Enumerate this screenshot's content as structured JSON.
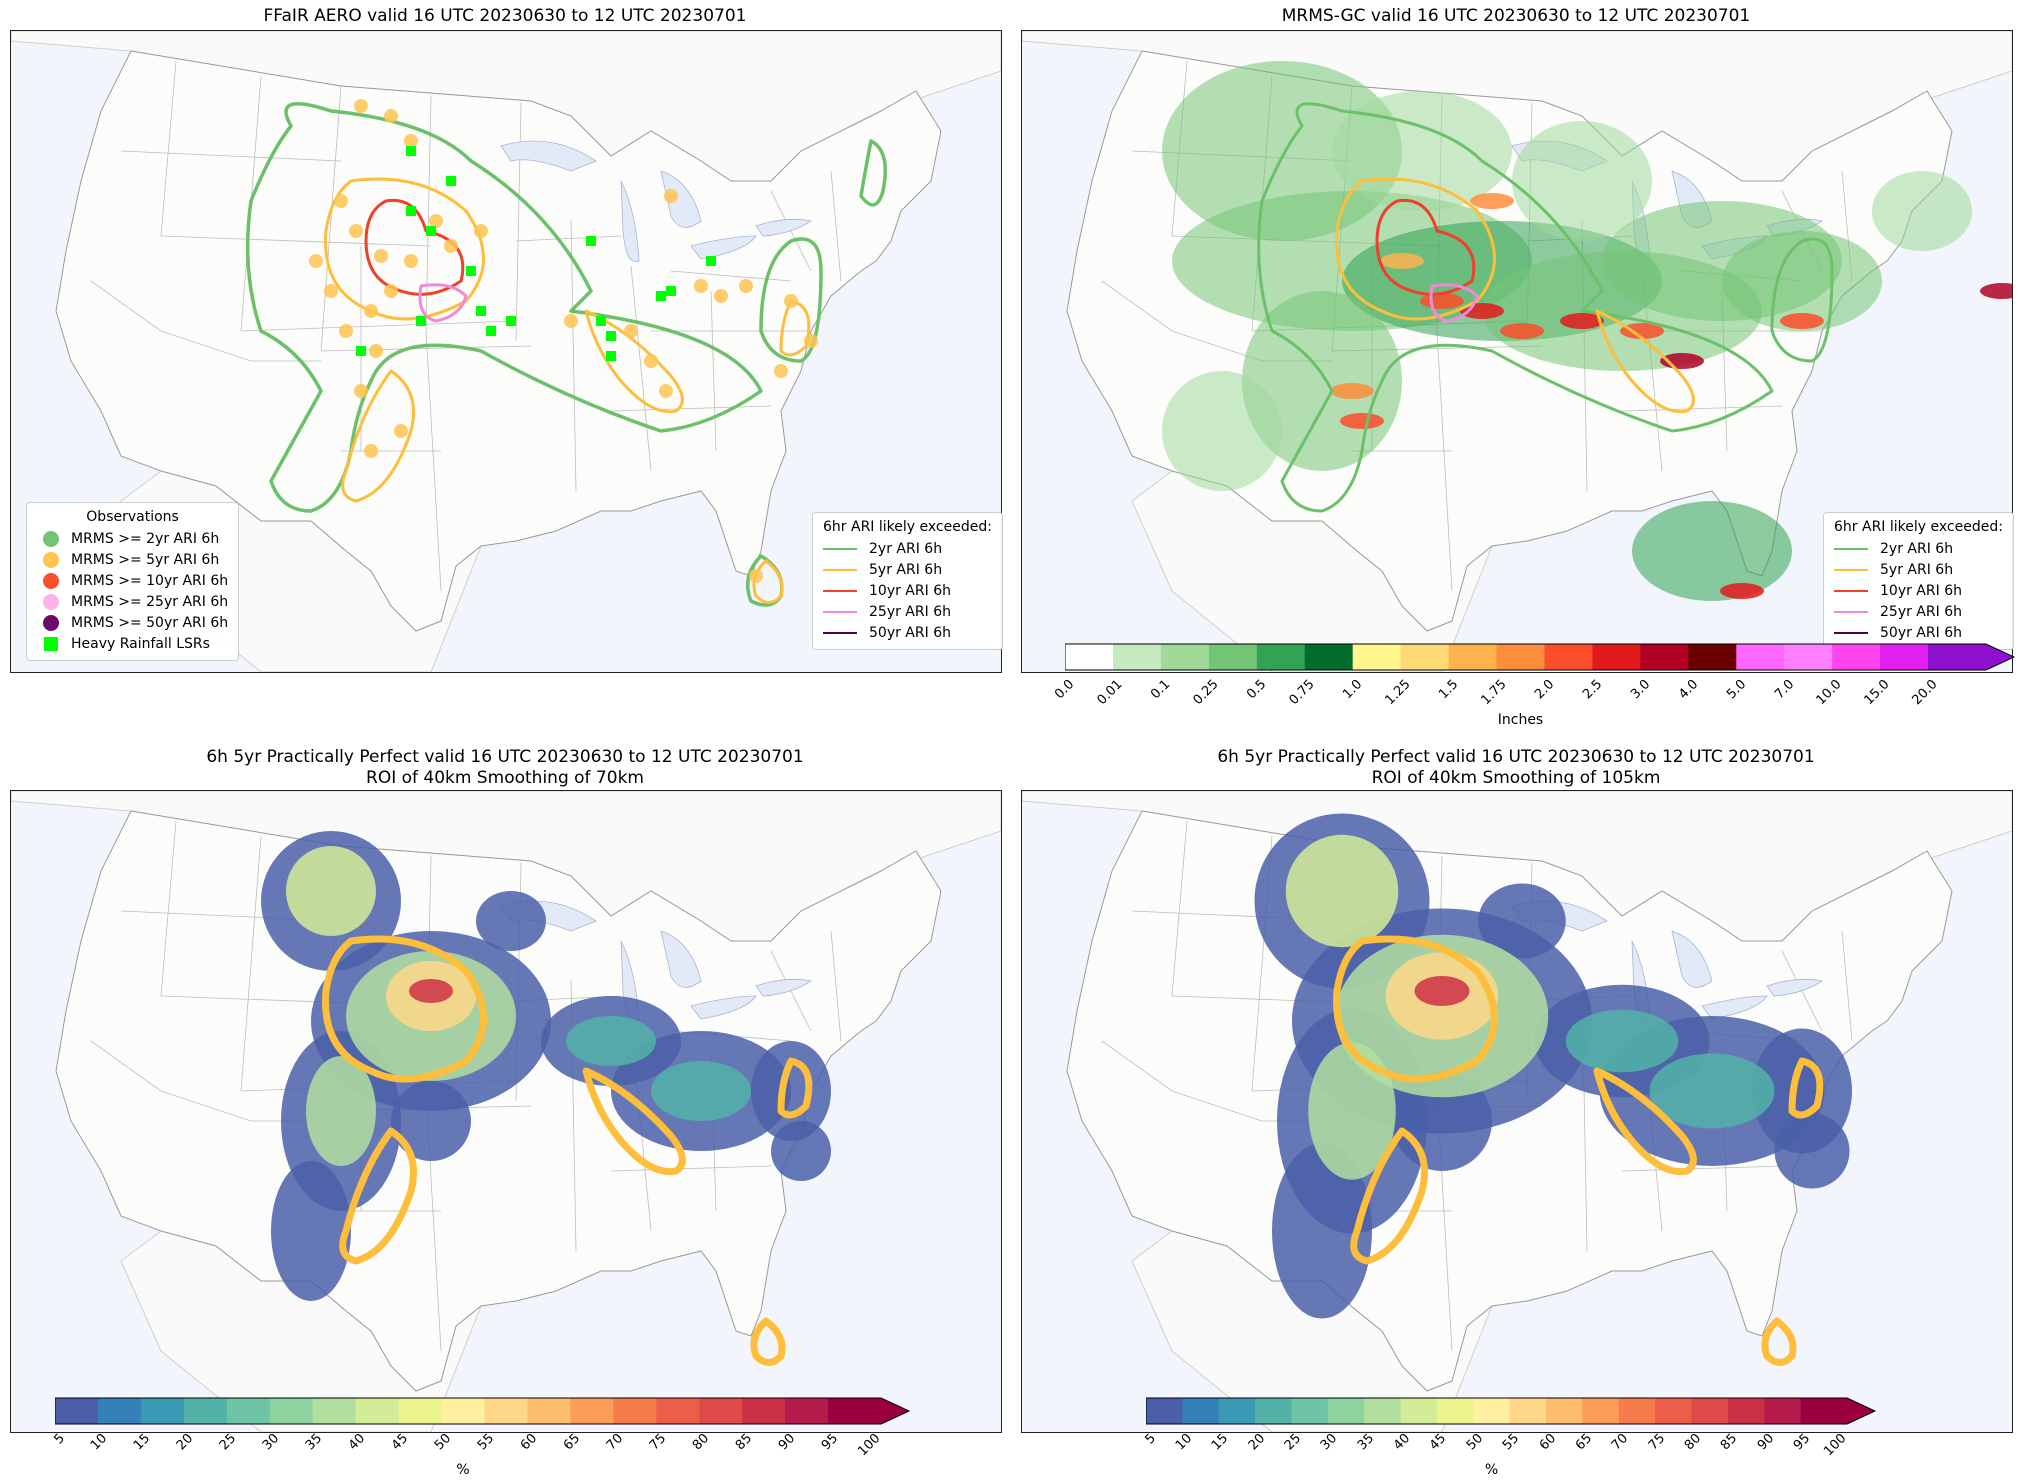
{
  "panels": [
    {
      "id": "ffair",
      "title_lines": [
        "FFaIR AERO valid 16 UTC 20230630 to 12 UTC 20230701"
      ]
    },
    {
      "id": "mrms",
      "title_lines": [
        "MRMS-GC valid 16 UTC 20230630 to 12 UTC 20230701"
      ]
    },
    {
      "id": "pp70",
      "title_lines": [
        "6h 5yr Practically Perfect valid 16 UTC 20230630 to 12 UTC 20230701",
        "ROI of 40km Smoothing of 70km"
      ]
    },
    {
      "id": "pp105",
      "title_lines": [
        "6h 5yr Practically Perfect valid 16 UTC 20230630 to 12 UTC 20230701",
        "ROI of 40km Smoothing of 105km"
      ]
    }
  ],
  "observations_legend": {
    "title": "Observations",
    "items": [
      {
        "label": "MRMS >= 2yr ARI 6h",
        "color": "#74c476",
        "shape": "circle"
      },
      {
        "label": "MRMS >= 5yr ARI 6h",
        "color": "#fec44f",
        "shape": "circle"
      },
      {
        "label": "MRMS >= 10yr ARI 6h",
        "color": "#fc4e2a",
        "shape": "circle"
      },
      {
        "label": "MRMS >= 25yr ARI 6h",
        "color": "#fbb4e8",
        "shape": "circle"
      },
      {
        "label": "MRMS >= 50yr ARI 6h",
        "color": "#6a0a6a",
        "shape": "circle"
      },
      {
        "label": "Heavy Rainfall LSRs",
        "color": "#00ff00",
        "shape": "square"
      }
    ]
  },
  "ari_legend": {
    "title": "6hr ARI likely exceeded:",
    "items": [
      {
        "label": "2yr ARI 6h",
        "color": "#6cc06a"
      },
      {
        "label": "5yr ARI 6h",
        "color": "#fdbe3c"
      },
      {
        "label": "10yr ARI 6h",
        "color": "#f0402a"
      },
      {
        "label": "25yr ARI 6h",
        "color": "#f08ad8"
      },
      {
        "label": "50yr ARI 6h",
        "color": "#50004a"
      }
    ]
  },
  "precip_colorbar": {
    "label": "Inches",
    "ticks": [
      "0.0",
      "0.01",
      "0.1",
      "0.25",
      "0.5",
      "0.75",
      "1.0",
      "1.25",
      "1.5",
      "1.75",
      "2.0",
      "2.5",
      "3.0",
      "4.0",
      "5.0",
      "7.0",
      "10.0",
      "15.0",
      "20.0"
    ],
    "colors": [
      "#ffffff",
      "#c7e9c0",
      "#a1d99b",
      "#74c476",
      "#31a354",
      "#006d2c",
      "#fff68f",
      "#fed976",
      "#feb24c",
      "#fd8d3c",
      "#fc4e2a",
      "#e31a1c",
      "#b10026",
      "#6b0000",
      "#ff66ff",
      "#ff80ff",
      "#ff44ee",
      "#e020f0",
      "#9010d0"
    ]
  },
  "pct_colorbar": {
    "label": "%",
    "ticks": [
      "5",
      "10",
      "15",
      "20",
      "25",
      "30",
      "35",
      "40",
      "45",
      "50",
      "55",
      "60",
      "65",
      "70",
      "75",
      "80",
      "85",
      "90",
      "95",
      "100"
    ],
    "colors": [
      "#4a5fa8",
      "#3580b9",
      "#3a9ab4",
      "#52b2a8",
      "#6ec4a4",
      "#8ed2a0",
      "#b2dea0",
      "#d2ec98",
      "#ecf48e",
      "#fef0a0",
      "#fed888",
      "#fdbe70",
      "#fb9c58",
      "#f67c4c",
      "#ec5e48",
      "#de4a48",
      "#cc3048",
      "#b41a4a",
      "#9a0040"
    ]
  }
}
